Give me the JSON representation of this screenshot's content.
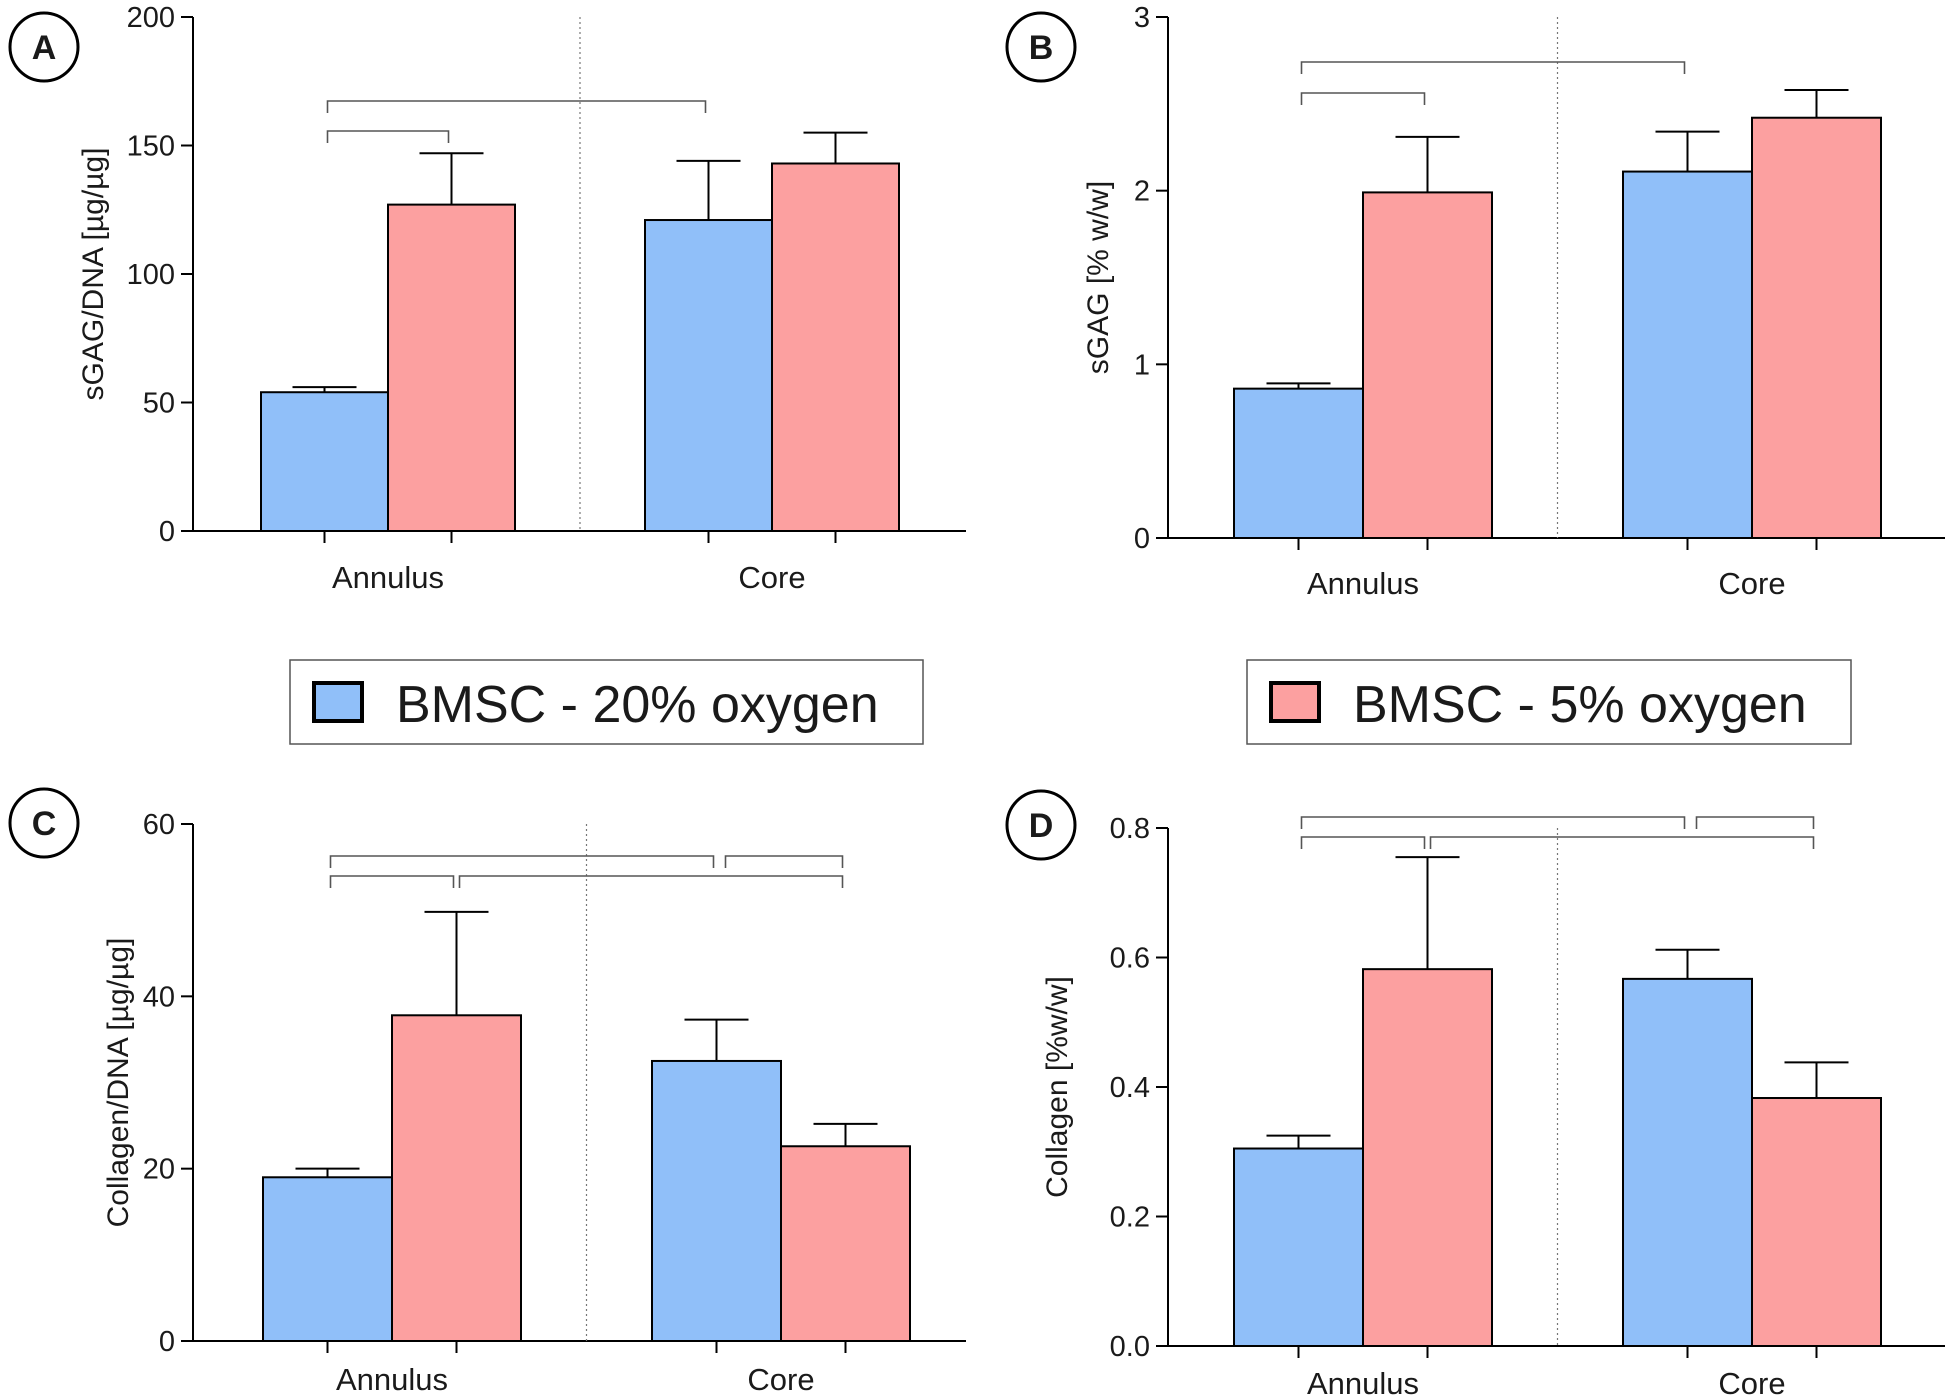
{
  "figure": {
    "legend": [
      {
        "label": "BMSC - 20% oxygen",
        "color": "#90BFF9"
      },
      {
        "label": "BMSC - 5% oxygen",
        "color": "#FCA0A0"
      }
    ]
  },
  "chart_data": [
    {
      "panel": "A",
      "type": "bar",
      "title": "",
      "ylabel": "sGAG/DNA [µg/µg]",
      "xlabel": "",
      "categories": [
        "Annulus",
        "Core"
      ],
      "ylim": [
        0,
        200
      ],
      "yticks": [
        0,
        50,
        100,
        150,
        200
      ],
      "ytick_labels": [
        "0",
        "50",
        "100",
        "150",
        "200"
      ],
      "series": [
        {
          "name": "BMSC - 20% oxygen",
          "values": [
            54,
            121
          ],
          "errors": [
            2,
            23
          ]
        },
        {
          "name": "BMSC - 5% oxygen",
          "values": [
            127,
            143
          ],
          "errors": [
            20,
            12
          ]
        }
      ],
      "brackets": [
        {
          "from": [
            0,
            0
          ],
          "to": [
            0,
            1
          ],
          "level": 0
        },
        {
          "from": [
            0,
            0
          ],
          "to": [
            1,
            0
          ],
          "level": 1
        }
      ]
    },
    {
      "panel": "B",
      "type": "bar",
      "title": "",
      "ylabel": "sGAG [% w/w]",
      "xlabel": "",
      "categories": [
        "Annulus",
        "Core"
      ],
      "ylim": [
        0,
        3
      ],
      "yticks": [
        0,
        1,
        2,
        3
      ],
      "ytick_labels": [
        "0",
        "1",
        "2",
        "3"
      ],
      "series": [
        {
          "name": "BMSC - 20% oxygen",
          "values": [
            0.86,
            2.11
          ],
          "errors": [
            0.03,
            0.23
          ]
        },
        {
          "name": "BMSC - 5% oxygen",
          "values": [
            1.99,
            2.42
          ],
          "errors": [
            0.32,
            0.16
          ]
        }
      ],
      "brackets": [
        {
          "from": [
            0,
            0
          ],
          "to": [
            0,
            1
          ],
          "level": 0
        },
        {
          "from": [
            0,
            0
          ],
          "to": [
            1,
            0
          ],
          "level": 1
        }
      ]
    },
    {
      "panel": "C",
      "type": "bar",
      "title": "",
      "ylabel": "Collagen/DNA [µg/µg]",
      "xlabel": "",
      "categories": [
        "Annulus",
        "Core"
      ],
      "ylim": [
        0,
        60
      ],
      "yticks": [
        0,
        20,
        40,
        60
      ],
      "ytick_labels": [
        "0",
        "20",
        "40",
        "60"
      ],
      "series": [
        {
          "name": "BMSC - 20% oxygen",
          "values": [
            19,
            32.5
          ],
          "errors": [
            1,
            4.8
          ]
        },
        {
          "name": "BMSC - 5% oxygen",
          "values": [
            37.8,
            22.6
          ],
          "errors": [
            12,
            2.6
          ]
        }
      ],
      "brackets": [
        {
          "from": [
            0,
            0
          ],
          "to": [
            0,
            1
          ],
          "level": 0
        },
        {
          "from": [
            0,
            1
          ],
          "to": [
            1,
            1
          ],
          "level": 0
        },
        {
          "from": [
            0,
            0
          ],
          "to": [
            1,
            0
          ],
          "level": 1
        },
        {
          "from": [
            1,
            0
          ],
          "to": [
            1,
            1
          ],
          "level": 1
        }
      ]
    },
    {
      "panel": "D",
      "type": "bar",
      "title": "",
      "ylabel": "Collagen [%w/w]",
      "xlabel": "",
      "categories": [
        "Annulus",
        "Core"
      ],
      "ylim": [
        0,
        0.8
      ],
      "yticks": [
        0,
        0.2,
        0.4,
        0.6,
        0.8
      ],
      "ytick_labels": [
        "0.0",
        "0.2",
        "0.4",
        "0.6",
        "0.8"
      ],
      "series": [
        {
          "name": "BMSC - 20% oxygen",
          "values": [
            0.305,
            0.567
          ],
          "errors": [
            0.02,
            0.045
          ]
        },
        {
          "name": "BMSC - 5% oxygen",
          "values": [
            0.582,
            0.383
          ],
          "errors": [
            0.173,
            0.055
          ]
        }
      ],
      "brackets": [
        {
          "from": [
            0,
            0
          ],
          "to": [
            0,
            1
          ],
          "level": 0
        },
        {
          "from": [
            0,
            1
          ],
          "to": [
            1,
            1
          ],
          "level": 0
        },
        {
          "from": [
            0,
            0
          ],
          "to": [
            1,
            0
          ],
          "level": 1
        },
        {
          "from": [
            1,
            0
          ],
          "to": [
            1,
            1
          ],
          "level": 1
        }
      ]
    }
  ]
}
